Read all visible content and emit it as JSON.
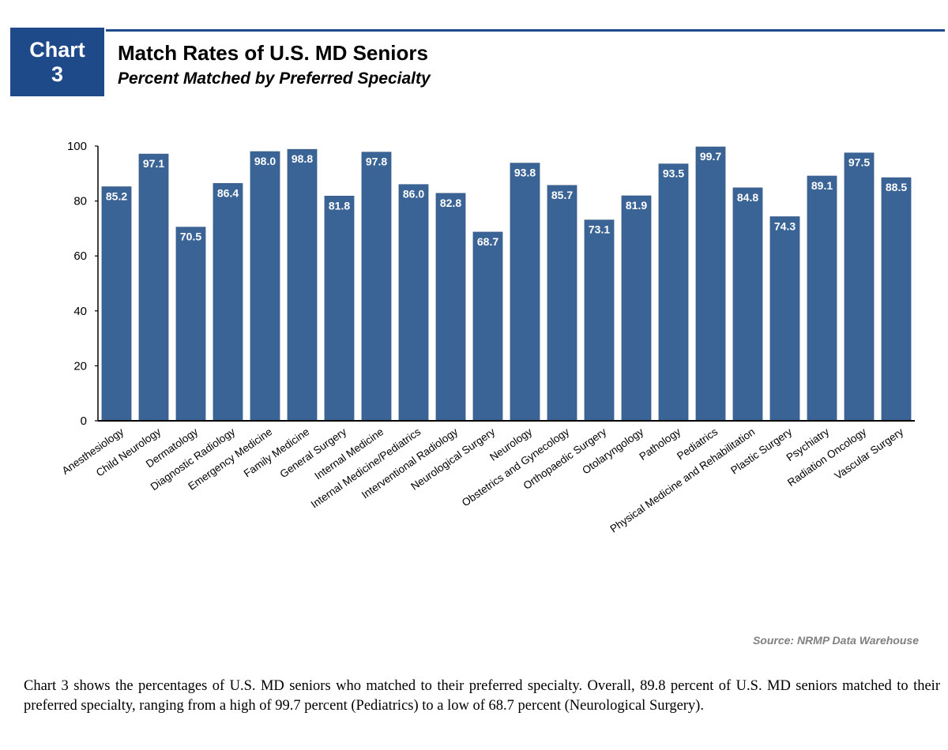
{
  "header": {
    "badge_line1": "Chart",
    "badge_line2": "3",
    "title": "Match Rates of U.S. MD Seniors",
    "subtitle": "Percent Matched by Preferred Specialty"
  },
  "colors": {
    "accent": "#1f4a8a",
    "bar": "#3b6496",
    "bar_edge": "#2e527e",
    "label_text": "#ffffff",
    "source_text": "#808080"
  },
  "chart_data": {
    "type": "bar",
    "title": "Match Rates of U.S. MD Seniors",
    "subtitle": "Percent Matched by Preferred Specialty",
    "xlabel": "",
    "ylabel": "",
    "ylim": [
      0,
      100
    ],
    "yticks": [
      0,
      20,
      40,
      60,
      80,
      100
    ],
    "grid": false,
    "legend": "none",
    "categories": [
      "Anesthesiology",
      "Child Neurology",
      "Dermatology",
      "Diagnostic Radiology",
      "Emergency Medicine",
      "Family Medicine",
      "General Surgery",
      "Internal Medicine",
      "Internal Medicine/Pediatrics",
      "Interventional Radiology",
      "Neurological Surgery",
      "Neurology",
      "Obstetrics and Gynecology",
      "Orthopaedic Surgery",
      "Otolaryngology",
      "Pathology",
      "Pediatrics",
      "Physical Medicine and Rehabilitation",
      "Plastic Surgery",
      "Psychiatry",
      "Radiation Oncology",
      "Vascular Surgery"
    ],
    "values": [
      85.2,
      97.1,
      70.5,
      86.4,
      98.0,
      98.8,
      81.8,
      97.8,
      86.0,
      82.8,
      68.7,
      93.8,
      85.7,
      73.1,
      81.9,
      93.5,
      99.7,
      84.8,
      74.3,
      89.1,
      97.5,
      88.5
    ],
    "value_labels": [
      "85.2",
      "97.1",
      "70.5",
      "86.4",
      "98.0",
      "98.8",
      "81.8",
      "97.8",
      "86.0",
      "82.8",
      "68.7",
      "93.8",
      "85.7",
      "73.1",
      "81.9",
      "93.5",
      "99.7",
      "84.8",
      "74.3",
      "89.1",
      "97.5",
      "88.5"
    ]
  },
  "source": "Source: NRMP Data Warehouse",
  "note": "Chart 3 shows the percentages of U.S. MD seniors who matched to their preferred specialty. Overall, 89.8 percent of U.S. MD seniors matched to their preferred specialty, ranging from a high of 99.7 percent (Pediatrics) to a low of 68.7 percent (Neurological Surgery)."
}
